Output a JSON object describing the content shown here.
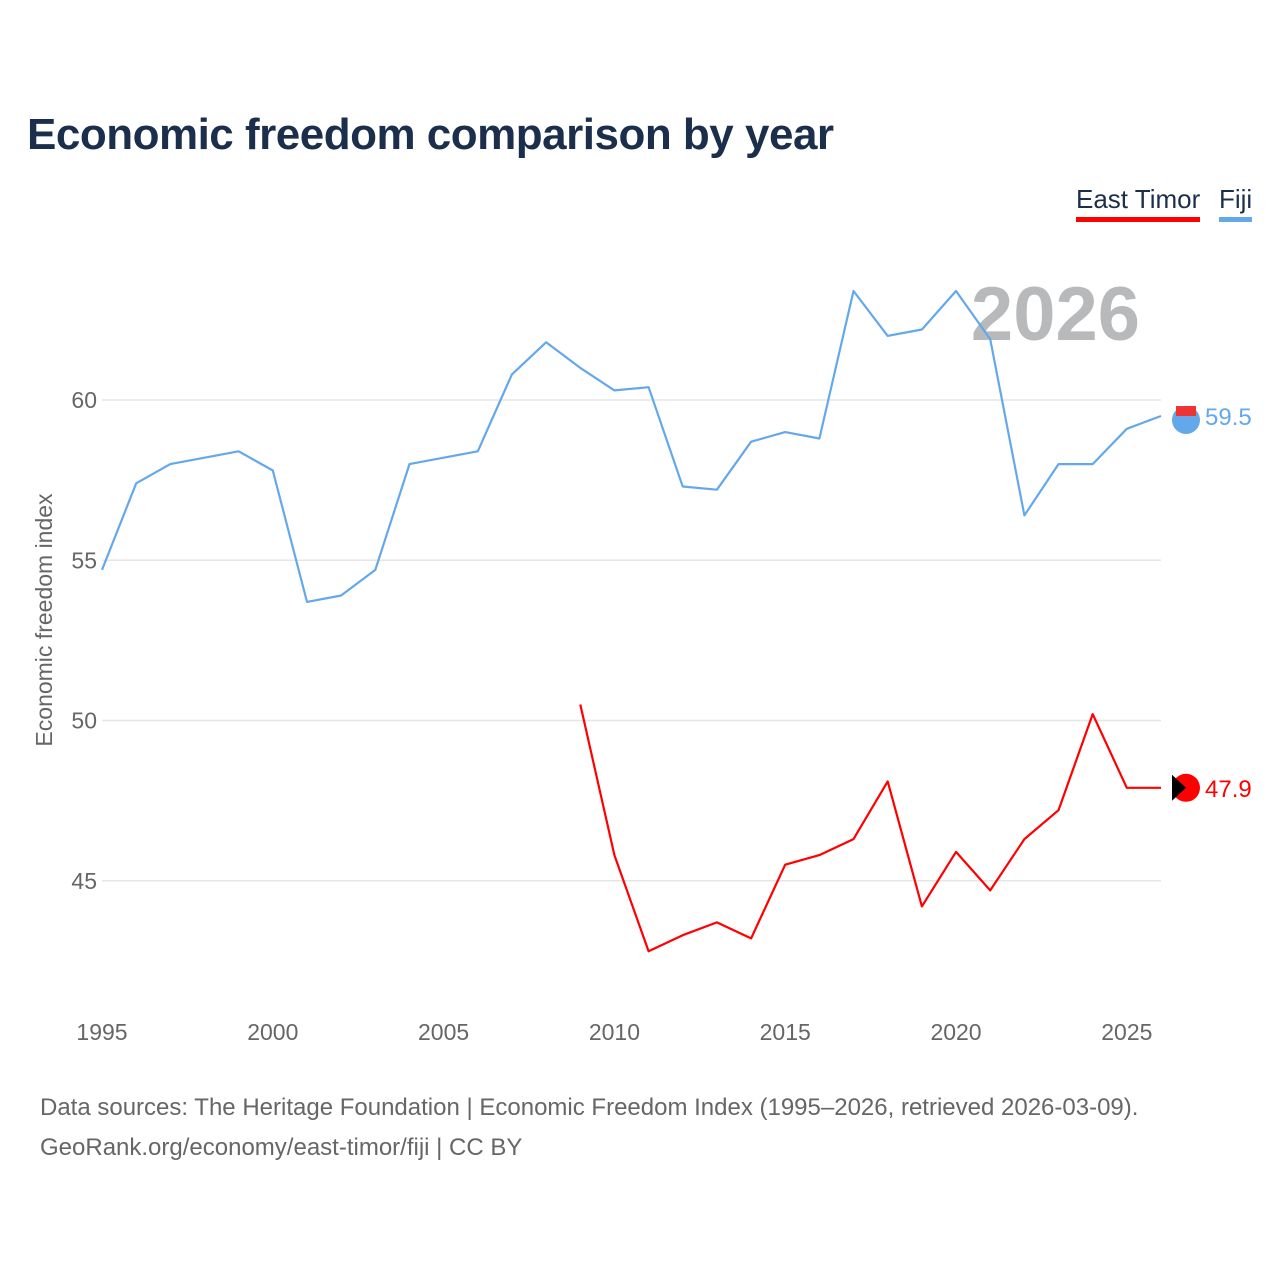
{
  "title": "Economic freedom comparison by year",
  "footer": {
    "line1": "Data sources: The Heritage Foundation | Economic Freedom Index (1995–2026, retrieved 2026-03-09).",
    "line2": "GeoRank.org/economy/east-timor/fiji | CC BY"
  },
  "chart_data": {
    "type": "line",
    "title": "Economic freedom comparison by year",
    "xlabel": "",
    "ylabel": "Economic freedom index",
    "year_overlay": "2026",
    "xlim": [
      1995,
      2026
    ],
    "ylim": [
      41.7,
      66
    ],
    "x_ticks": [
      1995,
      2000,
      2005,
      2010,
      2015,
      2020,
      2025
    ],
    "y_ticks": [
      45,
      50,
      55,
      60
    ],
    "grid": true,
    "legend_position": "top-right",
    "series": [
      {
        "name": "East Timor",
        "color": "#ff0000",
        "end_label": "47.9",
        "x": [
          2009,
          2010,
          2011,
          2012,
          2013,
          2014,
          2015,
          2016,
          2017,
          2018,
          2019,
          2020,
          2021,
          2022,
          2023,
          2024,
          2025,
          2026
        ],
        "values": [
          50.5,
          45.8,
          42.8,
          43.3,
          43.7,
          43.2,
          45.5,
          45.8,
          46.3,
          48.1,
          44.2,
          45.9,
          44.7,
          46.3,
          47.2,
          50.2,
          47.9,
          47.9
        ]
      },
      {
        "name": "Fiji",
        "color": "#64a8ec",
        "end_label": "59.5",
        "x": [
          1995,
          1996,
          1997,
          1998,
          1999,
          2000,
          2001,
          2002,
          2003,
          2004,
          2005,
          2006,
          2007,
          2008,
          2009,
          2010,
          2011,
          2012,
          2013,
          2014,
          2015,
          2016,
          2017,
          2018,
          2019,
          2020,
          2021,
          2022,
          2023,
          2024,
          2025,
          2026
        ],
        "values": [
          54.7,
          57.4,
          58.0,
          58.2,
          58.4,
          57.8,
          53.7,
          53.9,
          54.7,
          58.0,
          58.2,
          58.4,
          60.8,
          61.8,
          61.0,
          60.3,
          60.4,
          57.3,
          57.2,
          58.7,
          59.0,
          58.8,
          63.4,
          62.0,
          62.2,
          63.4,
          61.9,
          56.4,
          58.0,
          58.0,
          59.1,
          59.5
        ]
      }
    ]
  }
}
